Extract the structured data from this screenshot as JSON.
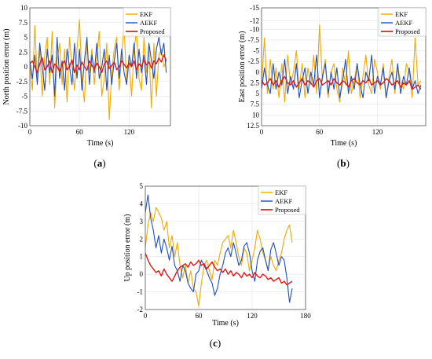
{
  "captions": [
    "(a)",
    "(b)",
    "(c)"
  ],
  "chart_data": [
    {
      "type": "line",
      "xlabel": "Time (s)",
      "ylabel": "North position error (m)",
      "xlim": [
        0,
        170
      ],
      "ylim": [
        -10,
        10
      ],
      "y_reversed": false,
      "xticks": [
        0,
        60,
        120
      ],
      "yticks": [
        -10,
        -7.5,
        -5,
        -2.5,
        0,
        2.5,
        5,
        7.5,
        10
      ],
      "ytick_labels": [
        "-10",
        "-7.5",
        "-5",
        "-2.5",
        "0",
        "2.5",
        "5",
        "7.5",
        "10"
      ],
      "grid": true,
      "legend_position": "top-right",
      "series": [
        {
          "name": "EKF",
          "color": "#F2A900",
          "width": 1.1,
          "x": [
            0,
            3,
            6,
            9,
            12,
            15,
            18,
            21,
            24,
            27,
            30,
            33,
            36,
            39,
            42,
            45,
            48,
            51,
            54,
            57,
            60,
            63,
            66,
            69,
            72,
            75,
            78,
            81,
            84,
            87,
            90,
            93,
            96,
            99,
            102,
            105,
            108,
            111,
            114,
            117,
            120,
            123,
            126,
            129,
            132,
            135,
            138,
            141,
            144,
            147,
            150,
            153,
            156,
            159,
            162,
            165
          ],
          "y": [
            0,
            -4,
            7,
            -2,
            3,
            -5,
            2,
            5,
            -3,
            6,
            -7,
            1,
            4,
            -3,
            3,
            -6,
            5,
            0,
            -4,
            3,
            8,
            -2,
            -6,
            4,
            -1,
            3,
            -3,
            2,
            6,
            -5,
            -2,
            4,
            -9,
            -1,
            3,
            5,
            -4,
            2,
            7,
            -3,
            1,
            -5,
            3,
            6,
            -2,
            -4,
            5,
            -1,
            3,
            -7,
            4,
            -5,
            2,
            3,
            0,
            1
          ]
        },
        {
          "name": "AEKF",
          "color": "#1F4FBF",
          "width": 1.1,
          "x": [
            0,
            3,
            6,
            9,
            12,
            15,
            18,
            21,
            24,
            27,
            30,
            33,
            36,
            39,
            42,
            45,
            48,
            51,
            54,
            57,
            60,
            63,
            66,
            69,
            72,
            75,
            78,
            81,
            84,
            87,
            90,
            93,
            96,
            99,
            102,
            105,
            108,
            111,
            114,
            117,
            120,
            123,
            126,
            129,
            132,
            135,
            138,
            141,
            144,
            147,
            150,
            153,
            156,
            159,
            162,
            165
          ],
          "y": [
            1,
            -2,
            2,
            -3,
            4,
            0,
            -4,
            3,
            -1,
            2,
            -5,
            5,
            -2,
            1,
            -4,
            3,
            0,
            -3,
            4,
            -2,
            3,
            -4,
            1,
            5,
            -3,
            2,
            -1,
            4,
            -2,
            0,
            3,
            -4,
            2,
            -3,
            1,
            4,
            -2,
            3,
            -1,
            -3,
            2,
            0,
            4,
            -2,
            3,
            -1,
            2,
            -3,
            4,
            1,
            -2,
            3,
            5,
            2,
            4,
            -1
          ]
        },
        {
          "name": "Proposed",
          "color": "#E0191B",
          "width": 1.4,
          "x": [
            0,
            3,
            6,
            9,
            12,
            15,
            18,
            21,
            24,
            27,
            30,
            33,
            36,
            39,
            42,
            45,
            48,
            51,
            54,
            57,
            60,
            63,
            66,
            69,
            72,
            75,
            78,
            81,
            84,
            87,
            90,
            93,
            96,
            99,
            102,
            105,
            108,
            111,
            114,
            117,
            120,
            123,
            126,
            129,
            132,
            135,
            138,
            141,
            144,
            147,
            150,
            153,
            156,
            159,
            162,
            165
          ],
          "y": [
            0.5,
            1,
            0,
            -1,
            0.5,
            1.5,
            -0.5,
            0,
            1,
            -1,
            0.5,
            0,
            -0.8,
            0.5,
            1,
            -0.5,
            0,
            1.2,
            -1,
            0.3,
            -0.5,
            0.8,
            0,
            -0.6,
            1,
            0.2,
            -0.4,
            0.6,
            0,
            -1,
            0.5,
            1,
            -0.3,
            0.2,
            0.8,
            -0.5,
            0,
            1,
            0.4,
            -0.2,
            0.6,
            0,
            1,
            -0.5,
            0.5,
            0,
            1.2,
            0.3,
            0.8,
            -0.2,
            1,
            0.5,
            1.5,
            0.8,
            2,
            1
          ]
        }
      ]
    },
    {
      "type": "line",
      "xlabel": "Time (s)",
      "ylabel": "East position error (m)",
      "xlim": [
        0,
        170
      ],
      "ylim": [
        -15,
        12.5
      ],
      "y_reversed": true,
      "xticks": [
        0,
        60,
        120
      ],
      "yticks": [
        12.5,
        10,
        7.5,
        5,
        2.5,
        0,
        -2.5,
        -5,
        -7.5,
        -10,
        -12,
        -15
      ],
      "ytick_labels": [
        "12.5",
        "10",
        "7.5",
        "5",
        "2.5",
        "0",
        "-2.5",
        "-5",
        "-7.5",
        "-10",
        "-12",
        "-15"
      ],
      "grid": true,
      "legend_position": "top-right",
      "series": [
        {
          "name": "EKF",
          "color": "#F2A900",
          "width": 1.1,
          "x": [
            0,
            3,
            6,
            9,
            12,
            15,
            18,
            21,
            24,
            27,
            30,
            33,
            36,
            39,
            42,
            45,
            48,
            51,
            54,
            57,
            60,
            63,
            66,
            69,
            72,
            75,
            78,
            81,
            84,
            87,
            90,
            93,
            96,
            99,
            102,
            105,
            108,
            111,
            114,
            117,
            120,
            123,
            126,
            129,
            132,
            135,
            138,
            141,
            144,
            147,
            150,
            153,
            156,
            159,
            162,
            165
          ],
          "y": [
            3,
            -8,
            5,
            -3,
            4,
            -1,
            6,
            -2,
            7,
            -4,
            3,
            0,
            -5,
            4,
            -2,
            6,
            -1,
            3,
            -4,
            5,
            -11,
            2,
            -3,
            6,
            0,
            -2,
            4,
            7,
            -1,
            3,
            -5,
            5,
            2,
            -2,
            6,
            1,
            -4,
            3,
            5,
            -3,
            0,
            4,
            -2,
            6,
            1,
            -3,
            5,
            -1,
            2,
            4,
            -2,
            0,
            6,
            -8,
            3,
            2
          ]
        },
        {
          "name": "AEKF",
          "color": "#1F4FBF",
          "width": 1.1,
          "x": [
            0,
            3,
            6,
            9,
            12,
            15,
            18,
            21,
            24,
            27,
            30,
            33,
            36,
            39,
            42,
            45,
            48,
            51,
            54,
            57,
            60,
            63,
            66,
            69,
            72,
            75,
            78,
            81,
            84,
            87,
            90,
            93,
            96,
            99,
            102,
            105,
            108,
            111,
            114,
            117,
            120,
            123,
            126,
            129,
            132,
            135,
            138,
            141,
            144,
            147,
            150,
            153,
            156,
            159,
            162,
            165
          ],
          "y": [
            4,
            -1,
            3,
            5,
            -2,
            4,
            0,
            3,
            -3,
            5,
            1,
            4,
            -2,
            6,
            2,
            -1,
            5,
            0,
            3,
            -4,
            6,
            1,
            -2,
            5,
            0,
            4,
            -1,
            6,
            2,
            -3,
            5,
            1,
            4,
            -2,
            3,
            6,
            0,
            2,
            -4,
            5,
            1,
            3,
            -1,
            6,
            2,
            0,
            4,
            -2,
            5,
            1,
            3,
            -1,
            4,
            2,
            5,
            3
          ]
        },
        {
          "name": "Proposed",
          "color": "#E0191B",
          "width": 1.4,
          "x": [
            0,
            3,
            6,
            9,
            12,
            15,
            18,
            21,
            24,
            27,
            30,
            33,
            36,
            39,
            42,
            45,
            48,
            51,
            54,
            57,
            60,
            63,
            66,
            69,
            72,
            75,
            78,
            81,
            84,
            87,
            90,
            93,
            96,
            99,
            102,
            105,
            108,
            111,
            114,
            117,
            120,
            123,
            126,
            129,
            132,
            135,
            138,
            141,
            144,
            147,
            150,
            153,
            156,
            159,
            162,
            165
          ],
          "y": [
            2,
            3,
            2.5,
            1.5,
            3,
            2,
            3.5,
            2,
            1,
            2.5,
            3,
            2,
            3.5,
            2.5,
            1.5,
            3,
            2,
            2.5,
            3.5,
            2,
            1.5,
            3,
            2.5,
            2,
            3,
            1.5,
            2.5,
            3,
            2,
            2.5,
            3.5,
            2,
            1.5,
            2.5,
            3,
            2,
            2.5,
            1.5,
            3,
            2.5,
            2,
            3,
            2.5,
            1.5,
            2,
            3,
            2.5,
            2,
            3.5,
            2.5,
            3,
            2,
            4,
            3.5,
            3,
            4
          ]
        }
      ]
    },
    {
      "type": "line",
      "xlabel": "Time (s)",
      "ylabel": "Up position error (m)",
      "xlim": [
        0,
        180
      ],
      "ylim": [
        -2,
        5
      ],
      "y_reversed": false,
      "xticks": [
        0,
        60,
        120,
        180
      ],
      "yticks": [
        -2,
        -1,
        0,
        1,
        2,
        3,
        4,
        5
      ],
      "ytick_labels": [
        "-2",
        "-1",
        "0",
        "1",
        "2",
        "3",
        "4",
        "5"
      ],
      "grid": true,
      "legend_position": "top-right",
      "series": [
        {
          "name": "EKF",
          "color": "#F2A900",
          "width": 1.1,
          "x": [
            0,
            3,
            6,
            9,
            12,
            15,
            18,
            21,
            24,
            27,
            30,
            33,
            36,
            39,
            42,
            45,
            48,
            51,
            54,
            57,
            60,
            63,
            66,
            69,
            72,
            75,
            78,
            81,
            84,
            87,
            90,
            93,
            96,
            99,
            102,
            105,
            108,
            111,
            114,
            117,
            120,
            123,
            126,
            129,
            132,
            135,
            138,
            141,
            144,
            147,
            150,
            153,
            156,
            159,
            162,
            165
          ],
          "y": [
            1.5,
            2.8,
            3.5,
            3,
            3.8,
            3.5,
            3.2,
            2.5,
            3,
            1.5,
            2.2,
            1,
            1.8,
            0.5,
            -0.2,
            0.5,
            -0.5,
            0.2,
            -0.8,
            -1,
            -1.8,
            -0.5,
            0.5,
            0.8,
            0.2,
            -0.3,
            0.8,
            0.5,
            1.2,
            1.8,
            2,
            2.2,
            1.5,
            2.5,
            1.8,
            1,
            0.5,
            1.5,
            1.2,
            0.2,
            0.8,
            1.5,
            2.5,
            2,
            1.2,
            0.8,
            0.3,
            1,
            0.5,
            0.2,
            0.8,
            1.2,
            2,
            2.5,
            2.8,
            1.8
          ]
        },
        {
          "name": "AEKF",
          "color": "#1F4FBF",
          "width": 1.1,
          "x": [
            0,
            3,
            6,
            9,
            12,
            15,
            18,
            21,
            24,
            27,
            30,
            33,
            36,
            39,
            42,
            45,
            48,
            51,
            54,
            57,
            60,
            63,
            66,
            69,
            72,
            75,
            78,
            81,
            84,
            87,
            90,
            93,
            96,
            99,
            102,
            105,
            108,
            111,
            114,
            117,
            120,
            123,
            126,
            129,
            132,
            135,
            138,
            141,
            144,
            147,
            150,
            153,
            156,
            159,
            162,
            165
          ],
          "y": [
            3.5,
            4.5,
            3.2,
            2.5,
            1.5,
            2.2,
            1.2,
            2,
            1.5,
            0.8,
            1.6,
            0.5,
            0.2,
            -0.4,
            0.5,
            0.2,
            -0.5,
            -0.8,
            -1,
            0,
            0.2,
            0.8,
            0.5,
            0.2,
            -0.2,
            -0.5,
            -1.2,
            -0.8,
            0,
            0.5,
            1.2,
            1.5,
            1,
            1.8,
            1.2,
            0.5,
            0.8,
            1.6,
            1.8,
            1.2,
            0.2,
            -0.4,
            0.8,
            1.3,
            1.5,
            0.8,
            0.2,
            1.4,
            1.8,
            1.2,
            0.5,
            1,
            0.8,
            -0.2,
            -1.6,
            -0.8
          ]
        },
        {
          "name": "Proposed",
          "color": "#E0191B",
          "width": 1.4,
          "x": [
            0,
            3,
            6,
            9,
            12,
            15,
            18,
            21,
            24,
            27,
            30,
            33,
            36,
            39,
            42,
            45,
            48,
            51,
            54,
            57,
            60,
            63,
            66,
            69,
            72,
            75,
            78,
            81,
            84,
            87,
            90,
            93,
            96,
            99,
            102,
            105,
            108,
            111,
            114,
            117,
            120,
            123,
            126,
            129,
            132,
            135,
            138,
            141,
            144,
            147,
            150,
            153,
            156,
            159,
            162,
            165
          ],
          "y": [
            1.2,
            0.8,
            0.5,
            0.3,
            0.1,
            0.2,
            -0.1,
            0.3,
            0,
            -0.2,
            -0.4,
            -0.1,
            0.2,
            0.4,
            0.5,
            0.6,
            0.4,
            0.7,
            0.5,
            0.6,
            0.8,
            0.5,
            0.6,
            0.3,
            0.5,
            0.7,
            0.4,
            0.2,
            0.3,
            0.1,
            0.3,
            0,
            0.2,
            -0.1,
            0.1,
            0,
            -0.2,
            0.1,
            -0.1,
            0,
            -0.2,
            0.1,
            -0.1,
            -0.2,
            0,
            -0.1,
            -0.3,
            -0.2,
            -0.4,
            -0.3,
            -0.2,
            -0.5,
            -0.4,
            -0.6,
            -0.5,
            -0.4
          ]
        }
      ]
    }
  ]
}
